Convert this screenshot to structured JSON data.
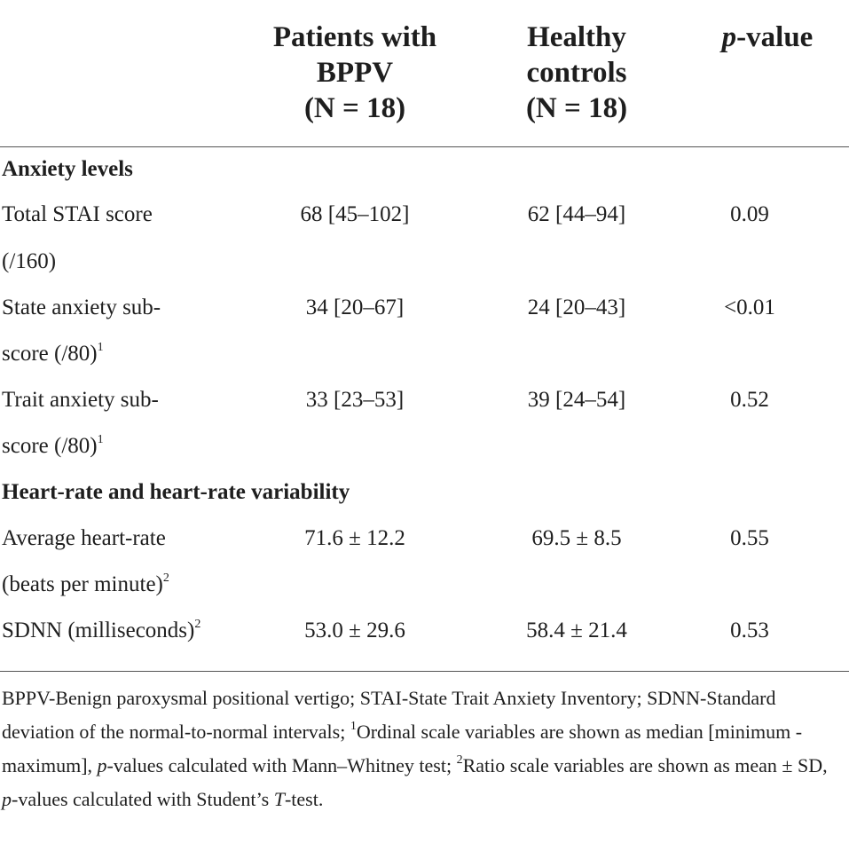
{
  "header": {
    "col_patients": [
      "Patients with",
      "BPPV",
      "(N = 18)"
    ],
    "col_controls": [
      "Healthy",
      "controls",
      "(N = 18)"
    ],
    "col_p_italic": "p",
    "col_p_rest": "-value"
  },
  "sections": {
    "anxiety": "Anxiety levels",
    "heart": "Heart-rate and heart-rate variability"
  },
  "rows": {
    "stai": {
      "label1": "Total STAI score",
      "label2": "(/160)",
      "patients": "68 [45–102]",
      "controls": "62 [44–94]",
      "p": "0.09"
    },
    "state": {
      "label1": "State anxiety sub-",
      "label2": "score (/80)",
      "sup": "1",
      "patients": "34 [20–67]",
      "controls": "24 [20–43]",
      "p": "<0.01"
    },
    "trait": {
      "label1": "Trait anxiety sub-",
      "label2": "score (/80)",
      "sup": "1",
      "patients": "33 [23–53]",
      "controls": "39 [24–54]",
      "p": "0.52"
    },
    "hr": {
      "label1": "Average heart-rate",
      "label2": "(beats per minute)",
      "sup": "2",
      "patients": "71.6 ± 12.2",
      "controls": "69.5 ± 8.5",
      "p": "0.55"
    },
    "sdnn": {
      "label1": "SDNN (milliseconds)",
      "sup": "2",
      "patients": "53.0 ± 29.6",
      "controls": "58.4 ± 21.4",
      "p": "0.53"
    }
  },
  "footnote": {
    "part1": "BPPV-Benign paroxysmal positional vertigo; STAI-State Trait Anxiety Inventory; SDNN-Standard deviation of the normal-to-normal intervals; ",
    "sup1": "1",
    "part2": "Ordinal scale variables are shown as median [minimum - maximum], ",
    "p1": "p",
    "part3": "-values calculated with Mann–Whitney test; ",
    "sup2": "2",
    "part4": "Ratio scale variables are shown as mean ± SD, ",
    "p2": "p",
    "part5": "-values calculated with Student’s ",
    "t": "T",
    "part6": "-test."
  }
}
